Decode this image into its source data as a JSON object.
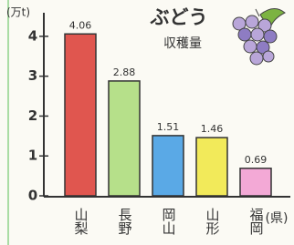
{
  "chart_data": {
    "type": "bar",
    "title": "ぶどう",
    "subtitle": "収穫量",
    "y_label": "(万t)",
    "x_label": "(県)",
    "categories": [
      "山梨",
      "長野",
      "岡山",
      "山形",
      "福岡"
    ],
    "values": [
      4.06,
      2.88,
      1.51,
      1.46,
      0.69
    ],
    "colors": [
      "#e0564f",
      "#b6e08a",
      "#5aa9e6",
      "#f2ea5a",
      "#f3a9d6"
    ],
    "ylim": [
      0,
      4.5
    ],
    "yticks": [
      0,
      1,
      2,
      3,
      4
    ]
  }
}
